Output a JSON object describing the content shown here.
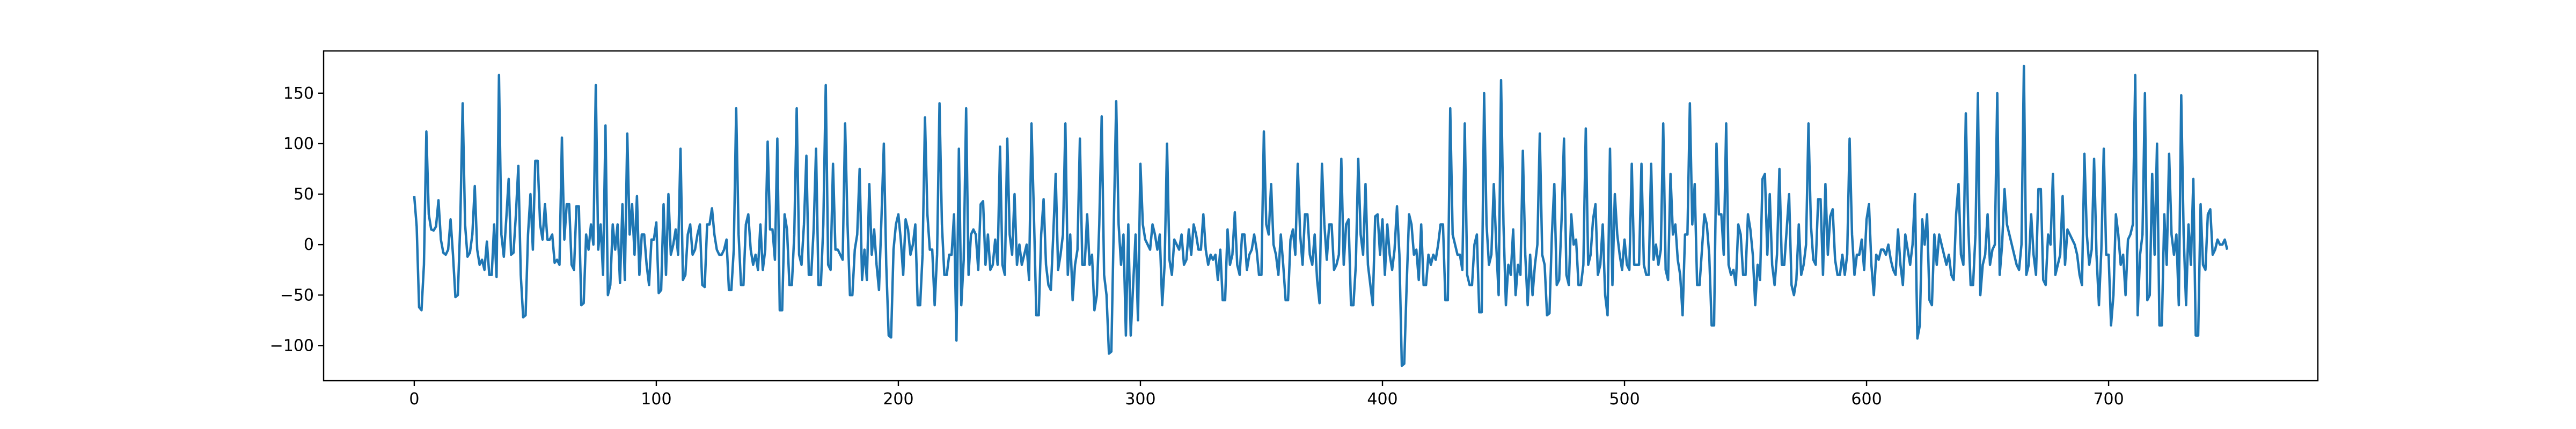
{
  "chart_data": {
    "type": "line",
    "color": "#1f77b4",
    "xlim": [
      -37.45,
      786.45
    ],
    "xticks": [
      0,
      100,
      200,
      300,
      400,
      500,
      600,
      700
    ],
    "ylim": [
      -134.85,
      191.85
    ],
    "yticks": [
      {
        "value": -100,
        "label": "−100"
      },
      {
        "value": -50,
        "label": "−50"
      },
      0,
      50,
      100,
      150
    ],
    "values": [
      48,
      18,
      -62,
      -65,
      -20,
      112,
      30,
      15,
      14,
      18,
      44,
      5,
      -8,
      -10,
      -5,
      25,
      -10,
      -52,
      -50,
      20,
      140,
      20,
      -12,
      -8,
      10,
      58,
      -5,
      -20,
      -15,
      -25,
      3,
      -30,
      -30,
      20,
      -32,
      168,
      10,
      -12,
      25,
      65,
      -10,
      -8,
      30,
      78,
      -30,
      -72,
      -70,
      10,
      50,
      -5,
      83,
      83,
      20,
      5,
      40,
      5,
      5,
      10,
      -18,
      -15,
      -20,
      106,
      5,
      40,
      40,
      -20,
      -25,
      38,
      38,
      -60,
      -58,
      10,
      -5,
      20,
      0,
      158,
      -5,
      20,
      -30,
      118,
      -50,
      -40,
      20,
      -5,
      20,
      -38,
      40,
      -35,
      110,
      10,
      40,
      -10,
      48,
      -30,
      10,
      10,
      -20,
      -40,
      5,
      5,
      22,
      -48,
      -45,
      40,
      -30,
      50,
      -10,
      0,
      15,
      -10,
      95,
      -35,
      -30,
      10,
      20,
      -10,
      -5,
      10,
      20,
      -40,
      -42,
      20,
      20,
      36,
      10,
      -5,
      -10,
      -10,
      -5,
      5,
      -45,
      -45,
      -5,
      135,
      10,
      -40,
      -40,
      20,
      30,
      -5,
      -20,
      -10,
      -25,
      20,
      -25,
      -5,
      102,
      15,
      15,
      -15,
      105,
      -65,
      -65,
      30,
      15,
      -40,
      -40,
      10,
      135,
      -10,
      -20,
      20,
      88,
      -30,
      -30,
      15,
      95,
      -40,
      -40,
      20,
      158,
      -20,
      -25,
      80,
      -5,
      -5,
      -10,
      -15,
      120,
      20,
      -50,
      -50,
      -5,
      10,
      75,
      -35,
      -5,
      -35,
      60,
      -10,
      15,
      -20,
      -45,
      25,
      100,
      -20,
      -90,
      -92,
      -5,
      20,
      30,
      5,
      -30,
      25,
      15,
      -10,
      0,
      20,
      -60,
      -60,
      -10,
      126,
      30,
      -5,
      -5,
      -60,
      -10,
      140,
      20,
      -30,
      -30,
      -10,
      -10,
      30,
      -95,
      95,
      -60,
      -15,
      135,
      -30,
      10,
      15,
      10,
      -25,
      40,
      43,
      -20,
      10,
      -25,
      -20,
      5,
      -20,
      97,
      -20,
      -30,
      105,
      10,
      -10,
      50,
      -20,
      0,
      -20,
      -10,
      0,
      -35,
      120,
      30,
      -70,
      -70,
      10,
      45,
      -20,
      -40,
      -45,
      10,
      70,
      -25,
      -10,
      10,
      120,
      -30,
      10,
      -55,
      -20,
      -5,
      105,
      -20,
      -20,
      30,
      -20,
      -10,
      -65,
      -50,
      20,
      127,
      -30,
      -50,
      -108,
      -106,
      20,
      142,
      20,
      -20,
      10,
      -90,
      20,
      -90,
      -40,
      10,
      -75,
      80,
      20,
      5,
      0,
      -5,
      20,
      10,
      -5,
      10,
      -60,
      -20,
      100,
      -15,
      -30,
      5,
      0,
      -5,
      10,
      -20,
      -15,
      15,
      -10,
      20,
      10,
      -5,
      -5,
      30,
      -5,
      -20,
      -10,
      -15,
      -10,
      -35,
      -5,
      -55,
      -55,
      15,
      -20,
      -10,
      32,
      -20,
      -30,
      10,
      10,
      -25,
      -10,
      -5,
      10,
      -5,
      -30,
      -30,
      112,
      20,
      10,
      60,
      0,
      -10,
      -30,
      10,
      -20,
      -55,
      -55,
      5,
      15,
      -10,
      80,
      10,
      -20,
      30,
      30,
      -10,
      -20,
      10,
      -35,
      -58,
      80,
      20,
      -15,
      20,
      20,
      -25,
      -20,
      -10,
      85,
      -20,
      20,
      25,
      -60,
      -60,
      -20,
      85,
      10,
      -10,
      60,
      -20,
      -40,
      -60,
      28,
      30,
      -10,
      25,
      -30,
      20,
      -10,
      -25,
      -5,
      38,
      -10,
      -120,
      -118,
      -40,
      30,
      20,
      -10,
      -5,
      -35,
      20,
      -40,
      -40,
      -10,
      -20,
      -10,
      -15,
      0,
      20,
      20,
      -55,
      -55,
      135,
      10,
      0,
      -10,
      -10,
      -25,
      120,
      -30,
      -40,
      -40,
      0,
      10,
      -67,
      -67,
      150,
      20,
      -20,
      -10,
      60,
      0,
      -50,
      163,
      20,
      -60,
      -20,
      -30,
      15,
      -50,
      -20,
      -30,
      93,
      -10,
      -60,
      -10,
      -50,
      -20,
      0,
      110,
      -10,
      -20,
      -70,
      -68,
      10,
      60,
      -40,
      -35,
      25,
      105,
      -30,
      -40,
      30,
      0,
      5,
      -40,
      -40,
      -20,
      115,
      -20,
      -10,
      25,
      40,
      -30,
      -20,
      20,
      -50,
      -70,
      95,
      -40,
      50,
      10,
      -10,
      -25,
      5,
      -20,
      -25,
      80,
      -20,
      -20,
      -20,
      80,
      -20,
      -30,
      -30,
      80,
      -15,
      0,
      -20,
      -5,
      120,
      -25,
      -35,
      70,
      10,
      20,
      -15,
      -30,
      -70,
      10,
      10,
      140,
      20,
      60,
      -40,
      -40,
      -5,
      30,
      20,
      -10,
      -80,
      -80,
      100,
      30,
      30,
      -10,
      120,
      -20,
      -30,
      -25,
      -40,
      20,
      10,
      -30,
      -30,
      30,
      15,
      -10,
      -60,
      -20,
      -35,
      65,
      70,
      -10,
      50,
      -20,
      -40,
      -10,
      75,
      -20,
      -20,
      15,
      50,
      -40,
      -50,
      -35,
      20,
      -30,
      -20,
      0,
      120,
      20,
      -15,
      -20,
      45,
      45,
      -30,
      60,
      -10,
      28,
      35,
      -15,
      -30,
      -30,
      -10,
      -30,
      -10,
      105,
      10,
      -30,
      -10,
      -10,
      5,
      -25,
      25,
      40,
      -20,
      -50,
      -10,
      -15,
      -5,
      -5,
      -10,
      0,
      -15,
      -25,
      -30,
      15,
      -20,
      -40,
      10,
      -5,
      -20,
      0,
      50,
      -93,
      -80,
      25,
      0,
      30,
      -55,
      -60,
      10,
      -20,
      10,
      0,
      -10,
      -20,
      -10,
      -30,
      -35,
      30,
      60,
      -10,
      -20,
      130,
      20,
      -40,
      -40,
      10,
      150,
      -50,
      -20,
      -10,
      30,
      -20,
      -5,
      0,
      150,
      -30,
      0,
      55,
      20,
      10,
      0,
      -10,
      -20,
      -25,
      0,
      177,
      -30,
      -20,
      30,
      -10,
      -30,
      55,
      55,
      -35,
      -40,
      10,
      0,
      70,
      -30,
      -20,
      -10,
      48,
      -20,
      15,
      10,
      5,
      0,
      -10,
      -30,
      -40,
      90,
      10,
      -20,
      -5,
      85,
      -10,
      -60,
      -5,
      95,
      -10,
      -10,
      -80,
      -50,
      30,
      10,
      -20,
      -10,
      -50,
      5,
      10,
      20,
      168,
      -70,
      -10,
      10,
      150,
      -55,
      -50,
      70,
      -10,
      100,
      -80,
      -80,
      30,
      -20,
      90,
      10,
      -10,
      10,
      -60,
      148,
      10,
      -60,
      20,
      -20,
      65,
      -90,
      -90,
      40,
      -20,
      -25,
      30,
      35,
      -10,
      -5,
      5,
      0,
      0,
      5,
      -5
    ]
  }
}
